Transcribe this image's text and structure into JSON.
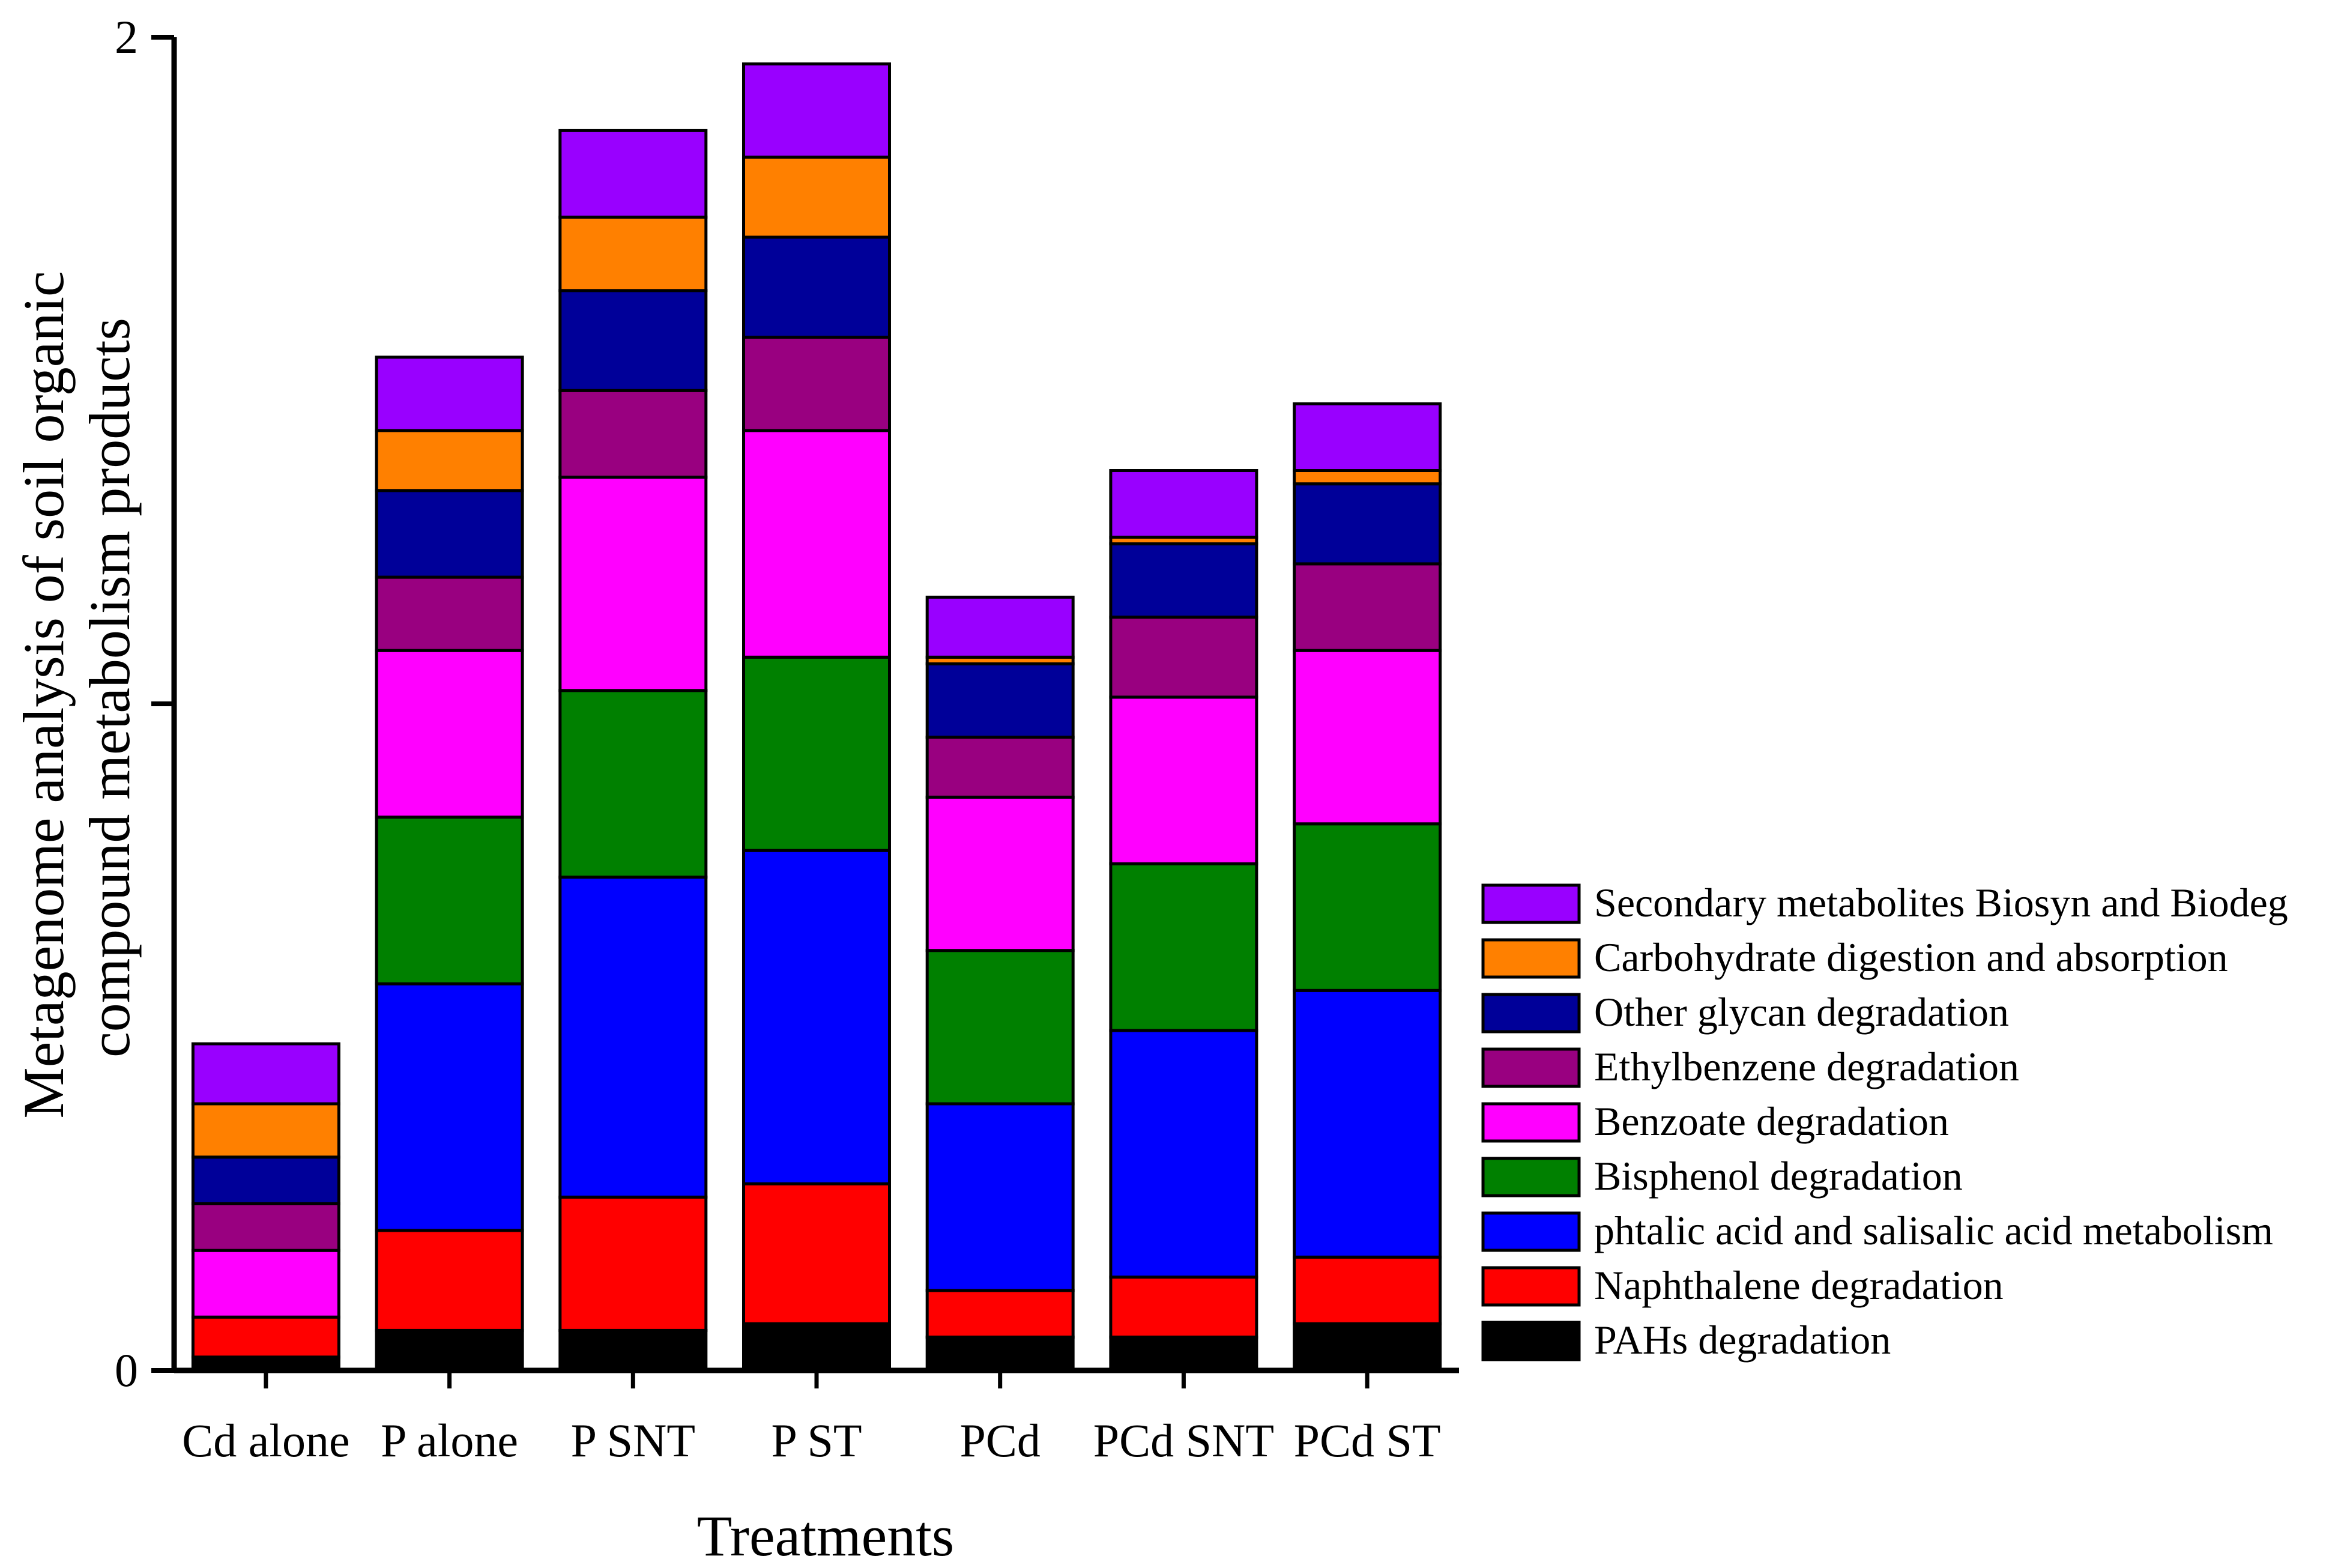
{
  "chart_data": {
    "type": "bar",
    "stacked": true,
    "title": "",
    "xlabel": "Treatments",
    "ylabel": [
      "Metagenome analysis of soil organic",
      "compound metabolism products"
    ],
    "ylim": [
      0,
      2
    ],
    "yticks": [
      0,
      1,
      2
    ],
    "ytick_labels": [
      "0",
      "",
      "2"
    ],
    "categories": [
      "Cd alone",
      "P alone",
      "P SNT",
      "P ST",
      "PCd",
      "PCd SNT",
      "PCd ST"
    ],
    "legend_position": "right",
    "series": [
      {
        "name": "PAHs degradation",
        "color": "#000000",
        "values": [
          0.02,
          0.06,
          0.06,
          0.07,
          0.05,
          0.05,
          0.07
        ]
      },
      {
        "name": "Naphthalene degradation",
        "color": "#ff0000",
        "values": [
          0.06,
          0.15,
          0.2,
          0.21,
          0.07,
          0.09,
          0.1
        ]
      },
      {
        "name": "phtalic acid and salisalic acid metabolism",
        "color": "#0000ff",
        "values": [
          0,
          0.37,
          0.48,
          0.5,
          0.28,
          0.37,
          0.4
        ]
      },
      {
        "name": "Bisphenol degradation",
        "color": "#008000",
        "values": [
          0,
          0.25,
          0.28,
          0.29,
          0.23,
          0.25,
          0.25
        ]
      },
      {
        "name": "Benzoate degradation",
        "color": "#ff00ff",
        "values": [
          0.1,
          0.25,
          0.32,
          0.34,
          0.23,
          0.25,
          0.26
        ]
      },
      {
        "name": "Ethylbenzene degradation",
        "color": "#990080",
        "values": [
          0.07,
          0.11,
          0.13,
          0.14,
          0.09,
          0.12,
          0.13
        ]
      },
      {
        "name": "Other glycan degradation",
        "color": "#000099",
        "values": [
          0.07,
          0.13,
          0.15,
          0.15,
          0.11,
          0.11,
          0.12
        ]
      },
      {
        "name": "Carbohydrate digestion and absorption",
        "color": "#ff8000",
        "values": [
          0.08,
          0.09,
          0.11,
          0.12,
          0.01,
          0.01,
          0.02
        ]
      },
      {
        "name": "Secondary metabolites Biosyn and Biodeg",
        "color": "#9900ff",
        "values": [
          0.09,
          0.11,
          0.13,
          0.14,
          0.09,
          0.1,
          0.1
        ]
      }
    ]
  }
}
